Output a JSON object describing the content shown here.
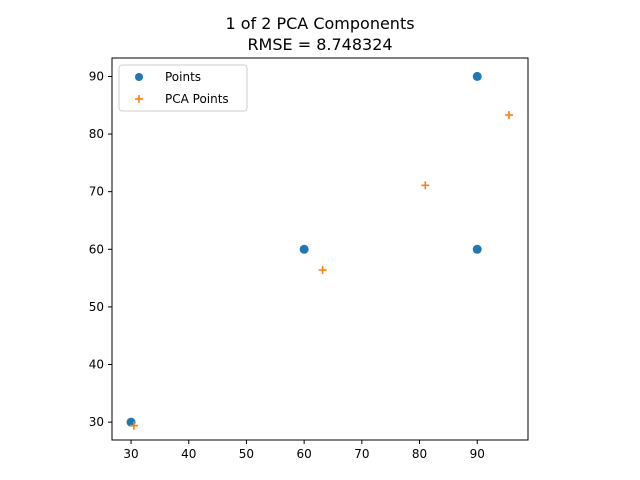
{
  "chart_data": {
    "type": "scatter",
    "title": "1 of 2 PCA Components",
    "subtitle": "RMSE = 8.748324",
    "xlabel": "",
    "ylabel": "",
    "xlim": [
      26.7,
      98.8
    ],
    "ylim": [
      26.9,
      93.2
    ],
    "xticks": [
      30,
      40,
      50,
      60,
      70,
      80,
      90
    ],
    "yticks": [
      30,
      40,
      50,
      60,
      70,
      80,
      90
    ],
    "grid": false,
    "legend_position": "upper-left",
    "series": [
      {
        "name": "Points",
        "marker": "circle",
        "color": "#1f77b4",
        "points": [
          {
            "x": 30,
            "y": 30
          },
          {
            "x": 60,
            "y": 60
          },
          {
            "x": 90,
            "y": 60
          },
          {
            "x": 90,
            "y": 90
          }
        ]
      },
      {
        "name": "PCA Points",
        "marker": "plus",
        "color": "#ff7f0e",
        "points": [
          {
            "x": 30.5,
            "y": 29.4
          },
          {
            "x": 63.2,
            "y": 56.4
          },
          {
            "x": 81.0,
            "y": 71.1
          },
          {
            "x": 95.5,
            "y": 83.3
          }
        ]
      }
    ]
  }
}
